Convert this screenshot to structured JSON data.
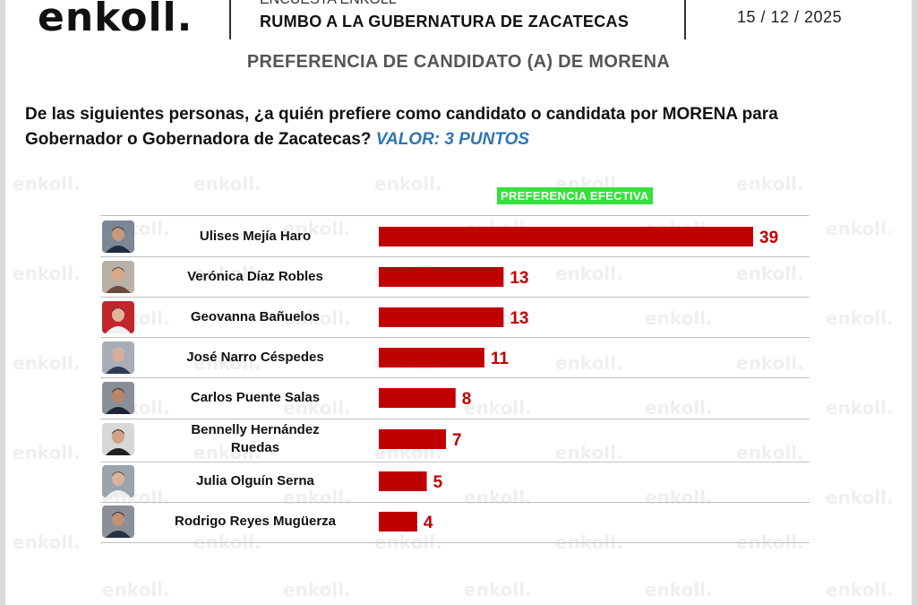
{
  "brand": {
    "logo": "enkoll.",
    "watermark": "enkoll."
  },
  "header": {
    "survey_label": "ENCUESTA ENKOLL",
    "title": "RUMBO A LA GUBERNATURA DE ZACATECAS",
    "date": "15 / 12 / 2025"
  },
  "subtitle": "PREFERENCIA DE CANDIDATO (A) DE MORENA",
  "question": {
    "text": "De las siguientes personas, ¿a quién prefiere como candidato o candidata por MORENA para Gobernador o Gobernadora de Zacatecas?",
    "valor": "VALOR: 3 PUNTOS"
  },
  "badge": "PREFERENCIA EFECTIVA",
  "colors": {
    "bar": "#c00000",
    "value_text": "#c00000",
    "badge_bg": "#33e23a",
    "valor": "#2e75b6"
  },
  "chart_data": {
    "type": "bar",
    "orientation": "horizontal",
    "title": "PREFERENCIA EFECTIVA",
    "categories": [
      "Ulises Mejía Haro",
      "Verónica Díaz Robles",
      "Geovanna Bañuelos",
      "José Narro Céspedes",
      "Carlos Puente Salas",
      "Bennelly Hernández Ruedas",
      "Julia Olguín Serna",
      "Rodrigo Reyes Mugüerza"
    ],
    "values": [
      39,
      13,
      13,
      11,
      8,
      7,
      5,
      4
    ],
    "data_labels": [
      "39",
      "13",
      "13",
      "11",
      "8",
      "7",
      "5",
      "4"
    ],
    "xlim": [
      0,
      39
    ],
    "grid": false
  },
  "rows": [
    {
      "name_lines": [
        "Ulises Mejía Haro"
      ],
      "avatar": "avatar-man-dark-hair"
    },
    {
      "name_lines": [
        "Verónica Díaz Robles"
      ],
      "avatar": "avatar-woman-glasses"
    },
    {
      "name_lines": [
        "Geovanna Bañuelos"
      ],
      "avatar": "avatar-woman-red-background"
    },
    {
      "name_lines": [
        "José Narro Céspedes"
      ],
      "avatar": "avatar-man-gray-hair"
    },
    {
      "name_lines": [
        "Carlos Puente Salas"
      ],
      "avatar": "avatar-man-suit"
    },
    {
      "name_lines": [
        "Bennelly Hernández",
        "Ruedas"
      ],
      "avatar": "avatar-woman-dark-hair"
    },
    {
      "name_lines": [
        "Julia Olguín Serna"
      ],
      "avatar": "avatar-woman-short-hair"
    },
    {
      "name_lines": [
        "Rodrigo Reyes Mugüerza"
      ],
      "avatar": "avatar-man-beard"
    }
  ]
}
